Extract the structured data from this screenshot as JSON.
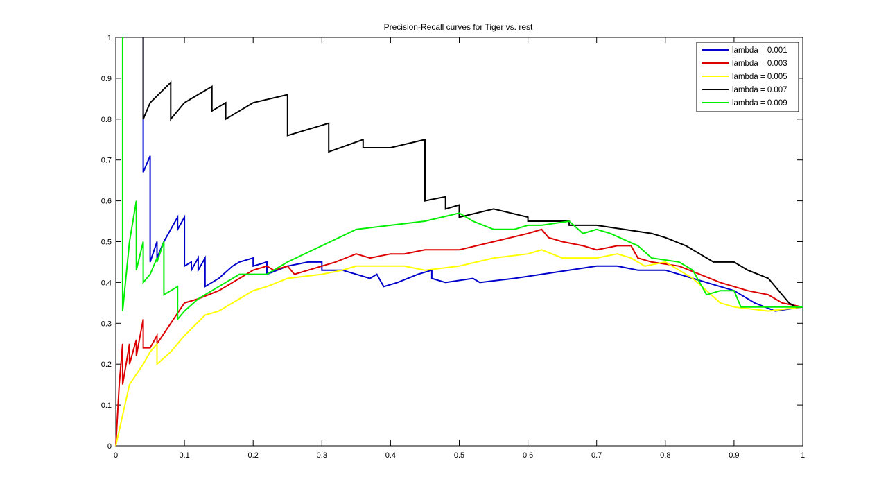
{
  "chart_data": {
    "type": "line",
    "title": "Precision-Recall curves for Tiger vs. rest",
    "xlabel": "",
    "ylabel": "",
    "xlim": [
      0,
      1
    ],
    "ylim": [
      0,
      1
    ],
    "x_ticks": [
      0,
      0.1,
      0.2,
      0.3,
      0.4,
      0.5,
      0.6,
      0.7,
      0.8,
      0.9,
      1
    ],
    "x_tick_labels": [
      "0",
      "0.1",
      "0.2",
      "0.3",
      "0.4",
      "0.5",
      "0.6",
      "0.7",
      "0.8",
      "0.9",
      "1"
    ],
    "y_ticks": [
      0,
      0.1,
      0.2,
      0.3,
      0.4,
      0.5,
      0.6,
      0.7,
      0.8,
      0.9,
      1
    ],
    "y_tick_labels": [
      "0",
      "0.1",
      "0.2",
      "0.3",
      "0.4",
      "0.5",
      "0.6",
      "0.7",
      "0.8",
      "0.9",
      "1"
    ],
    "grid": false,
    "legend_position": "top-right",
    "series": [
      {
        "name": "lambda = 0.001",
        "color": "#0000cc",
        "points": [
          [
            0.04,
            1.0
          ],
          [
            0.04,
            0.67
          ],
          [
            0.045,
            0.69
          ],
          [
            0.05,
            0.71
          ],
          [
            0.05,
            0.45
          ],
          [
            0.06,
            0.5
          ],
          [
            0.06,
            0.46
          ],
          [
            0.07,
            0.5
          ],
          [
            0.08,
            0.53
          ],
          [
            0.09,
            0.56
          ],
          [
            0.09,
            0.53
          ],
          [
            0.1,
            0.56
          ],
          [
            0.1,
            0.44
          ],
          [
            0.11,
            0.45
          ],
          [
            0.11,
            0.43
          ],
          [
            0.12,
            0.46
          ],
          [
            0.12,
            0.43
          ],
          [
            0.13,
            0.46
          ],
          [
            0.13,
            0.39
          ],
          [
            0.15,
            0.41
          ],
          [
            0.17,
            0.44
          ],
          [
            0.18,
            0.45
          ],
          [
            0.2,
            0.46
          ],
          [
            0.2,
            0.44
          ],
          [
            0.22,
            0.45
          ],
          [
            0.22,
            0.42
          ],
          [
            0.25,
            0.44
          ],
          [
            0.28,
            0.45
          ],
          [
            0.3,
            0.45
          ],
          [
            0.3,
            0.43
          ],
          [
            0.33,
            0.43
          ],
          [
            0.35,
            0.42
          ],
          [
            0.37,
            0.41
          ],
          [
            0.38,
            0.42
          ],
          [
            0.39,
            0.39
          ],
          [
            0.41,
            0.4
          ],
          [
            0.44,
            0.42
          ],
          [
            0.46,
            0.43
          ],
          [
            0.46,
            0.41
          ],
          [
            0.48,
            0.4
          ],
          [
            0.52,
            0.41
          ],
          [
            0.53,
            0.4
          ],
          [
            0.58,
            0.41
          ],
          [
            0.62,
            0.42
          ],
          [
            0.7,
            0.44
          ],
          [
            0.73,
            0.44
          ],
          [
            0.76,
            0.43
          ],
          [
            0.8,
            0.43
          ],
          [
            0.84,
            0.41
          ],
          [
            0.86,
            0.4
          ],
          [
            0.9,
            0.38
          ],
          [
            0.93,
            0.35
          ],
          [
            0.96,
            0.33
          ],
          [
            1.0,
            0.34
          ]
        ]
      },
      {
        "name": "lambda = 0.003",
        "color": "#dd0000",
        "points": [
          [
            0.0,
            0.0
          ],
          [
            0.005,
            0.15
          ],
          [
            0.01,
            0.25
          ],
          [
            0.01,
            0.15
          ],
          [
            0.015,
            0.2
          ],
          [
            0.02,
            0.25
          ],
          [
            0.02,
            0.2
          ],
          [
            0.03,
            0.26
          ],
          [
            0.03,
            0.22
          ],
          [
            0.04,
            0.31
          ],
          [
            0.04,
            0.24
          ],
          [
            0.05,
            0.24
          ],
          [
            0.06,
            0.27
          ],
          [
            0.06,
            0.25
          ],
          [
            0.08,
            0.3
          ],
          [
            0.1,
            0.35
          ],
          [
            0.12,
            0.36
          ],
          [
            0.15,
            0.38
          ],
          [
            0.18,
            0.41
          ],
          [
            0.2,
            0.43
          ],
          [
            0.22,
            0.44
          ],
          [
            0.23,
            0.43
          ],
          [
            0.25,
            0.44
          ],
          [
            0.26,
            0.42
          ],
          [
            0.28,
            0.43
          ],
          [
            0.3,
            0.44
          ],
          [
            0.32,
            0.45
          ],
          [
            0.35,
            0.47
          ],
          [
            0.37,
            0.46
          ],
          [
            0.4,
            0.47
          ],
          [
            0.42,
            0.47
          ],
          [
            0.45,
            0.48
          ],
          [
            0.5,
            0.48
          ],
          [
            0.55,
            0.5
          ],
          [
            0.6,
            0.52
          ],
          [
            0.62,
            0.53
          ],
          [
            0.63,
            0.51
          ],
          [
            0.65,
            0.5
          ],
          [
            0.68,
            0.49
          ],
          [
            0.7,
            0.48
          ],
          [
            0.73,
            0.49
          ],
          [
            0.75,
            0.49
          ],
          [
            0.76,
            0.46
          ],
          [
            0.78,
            0.45
          ],
          [
            0.82,
            0.44
          ],
          [
            0.85,
            0.42
          ],
          [
            0.88,
            0.4
          ],
          [
            0.9,
            0.39
          ],
          [
            0.92,
            0.38
          ],
          [
            0.95,
            0.37
          ],
          [
            0.97,
            0.35
          ],
          [
            1.0,
            0.34
          ]
        ]
      },
      {
        "name": "lambda = 0.005",
        "color": "#ffff00",
        "points": [
          [
            0.0,
            0.0
          ],
          [
            0.02,
            0.15
          ],
          [
            0.04,
            0.2
          ],
          [
            0.05,
            0.23
          ],
          [
            0.06,
            0.25
          ],
          [
            0.06,
            0.2
          ],
          [
            0.08,
            0.23
          ],
          [
            0.1,
            0.27
          ],
          [
            0.13,
            0.32
          ],
          [
            0.15,
            0.33
          ],
          [
            0.18,
            0.36
          ],
          [
            0.2,
            0.38
          ],
          [
            0.22,
            0.39
          ],
          [
            0.25,
            0.41
          ],
          [
            0.3,
            0.42
          ],
          [
            0.33,
            0.43
          ],
          [
            0.35,
            0.44
          ],
          [
            0.4,
            0.44
          ],
          [
            0.42,
            0.44
          ],
          [
            0.45,
            0.43
          ],
          [
            0.5,
            0.44
          ],
          [
            0.55,
            0.46
          ],
          [
            0.6,
            0.47
          ],
          [
            0.62,
            0.48
          ],
          [
            0.65,
            0.46
          ],
          [
            0.7,
            0.46
          ],
          [
            0.73,
            0.47
          ],
          [
            0.75,
            0.46
          ],
          [
            0.77,
            0.44
          ],
          [
            0.8,
            0.45
          ],
          [
            0.82,
            0.43
          ],
          [
            0.84,
            0.41
          ],
          [
            0.86,
            0.38
          ],
          [
            0.88,
            0.35
          ],
          [
            0.9,
            0.34
          ],
          [
            0.95,
            0.33
          ],
          [
            1.0,
            0.34
          ]
        ]
      },
      {
        "name": "lambda = 0.007",
        "color": "#000000",
        "points": [
          [
            0.04,
            1.0
          ],
          [
            0.04,
            0.8
          ],
          [
            0.05,
            0.84
          ],
          [
            0.08,
            0.89
          ],
          [
            0.08,
            0.8
          ],
          [
            0.1,
            0.84
          ],
          [
            0.14,
            0.88
          ],
          [
            0.14,
            0.82
          ],
          [
            0.16,
            0.84
          ],
          [
            0.16,
            0.8
          ],
          [
            0.2,
            0.84
          ],
          [
            0.25,
            0.86
          ],
          [
            0.25,
            0.76
          ],
          [
            0.31,
            0.79
          ],
          [
            0.31,
            0.72
          ],
          [
            0.36,
            0.75
          ],
          [
            0.36,
            0.73
          ],
          [
            0.4,
            0.73
          ],
          [
            0.45,
            0.75
          ],
          [
            0.45,
            0.6
          ],
          [
            0.48,
            0.61
          ],
          [
            0.48,
            0.58
          ],
          [
            0.5,
            0.59
          ],
          [
            0.5,
            0.56
          ],
          [
            0.55,
            0.58
          ],
          [
            0.6,
            0.56
          ],
          [
            0.6,
            0.55
          ],
          [
            0.63,
            0.55
          ],
          [
            0.66,
            0.55
          ],
          [
            0.66,
            0.54
          ],
          [
            0.7,
            0.54
          ],
          [
            0.74,
            0.53
          ],
          [
            0.78,
            0.52
          ],
          [
            0.8,
            0.51
          ],
          [
            0.83,
            0.49
          ],
          [
            0.85,
            0.47
          ],
          [
            0.87,
            0.45
          ],
          [
            0.9,
            0.45
          ],
          [
            0.92,
            0.43
          ],
          [
            0.95,
            0.41
          ],
          [
            0.97,
            0.37
          ],
          [
            0.98,
            0.35
          ],
          [
            0.99,
            0.34
          ],
          [
            1.0,
            0.34
          ]
        ]
      },
      {
        "name": "lambda = 0.009",
        "color": "#00ee00",
        "points": [
          [
            0.01,
            1.0
          ],
          [
            0.01,
            0.33
          ],
          [
            0.02,
            0.5
          ],
          [
            0.03,
            0.6
          ],
          [
            0.03,
            0.43
          ],
          [
            0.04,
            0.5
          ],
          [
            0.04,
            0.4
          ],
          [
            0.05,
            0.42
          ],
          [
            0.06,
            0.46
          ],
          [
            0.06,
            0.45
          ],
          [
            0.07,
            0.5
          ],
          [
            0.07,
            0.37
          ],
          [
            0.09,
            0.39
          ],
          [
            0.09,
            0.31
          ],
          [
            0.1,
            0.33
          ],
          [
            0.12,
            0.36
          ],
          [
            0.15,
            0.39
          ],
          [
            0.18,
            0.42
          ],
          [
            0.2,
            0.42
          ],
          [
            0.22,
            0.42
          ],
          [
            0.25,
            0.45
          ],
          [
            0.3,
            0.49
          ],
          [
            0.35,
            0.53
          ],
          [
            0.4,
            0.54
          ],
          [
            0.45,
            0.55
          ],
          [
            0.5,
            0.57
          ],
          [
            0.52,
            0.55
          ],
          [
            0.55,
            0.53
          ],
          [
            0.58,
            0.53
          ],
          [
            0.6,
            0.54
          ],
          [
            0.62,
            0.54
          ],
          [
            0.66,
            0.55
          ],
          [
            0.68,
            0.52
          ],
          [
            0.7,
            0.53
          ],
          [
            0.72,
            0.52
          ],
          [
            0.76,
            0.49
          ],
          [
            0.78,
            0.46
          ],
          [
            0.82,
            0.45
          ],
          [
            0.84,
            0.43
          ],
          [
            0.86,
            0.37
          ],
          [
            0.88,
            0.38
          ],
          [
            0.9,
            0.38
          ],
          [
            0.91,
            0.34
          ],
          [
            0.95,
            0.34
          ],
          [
            1.0,
            0.34
          ]
        ]
      }
    ]
  }
}
